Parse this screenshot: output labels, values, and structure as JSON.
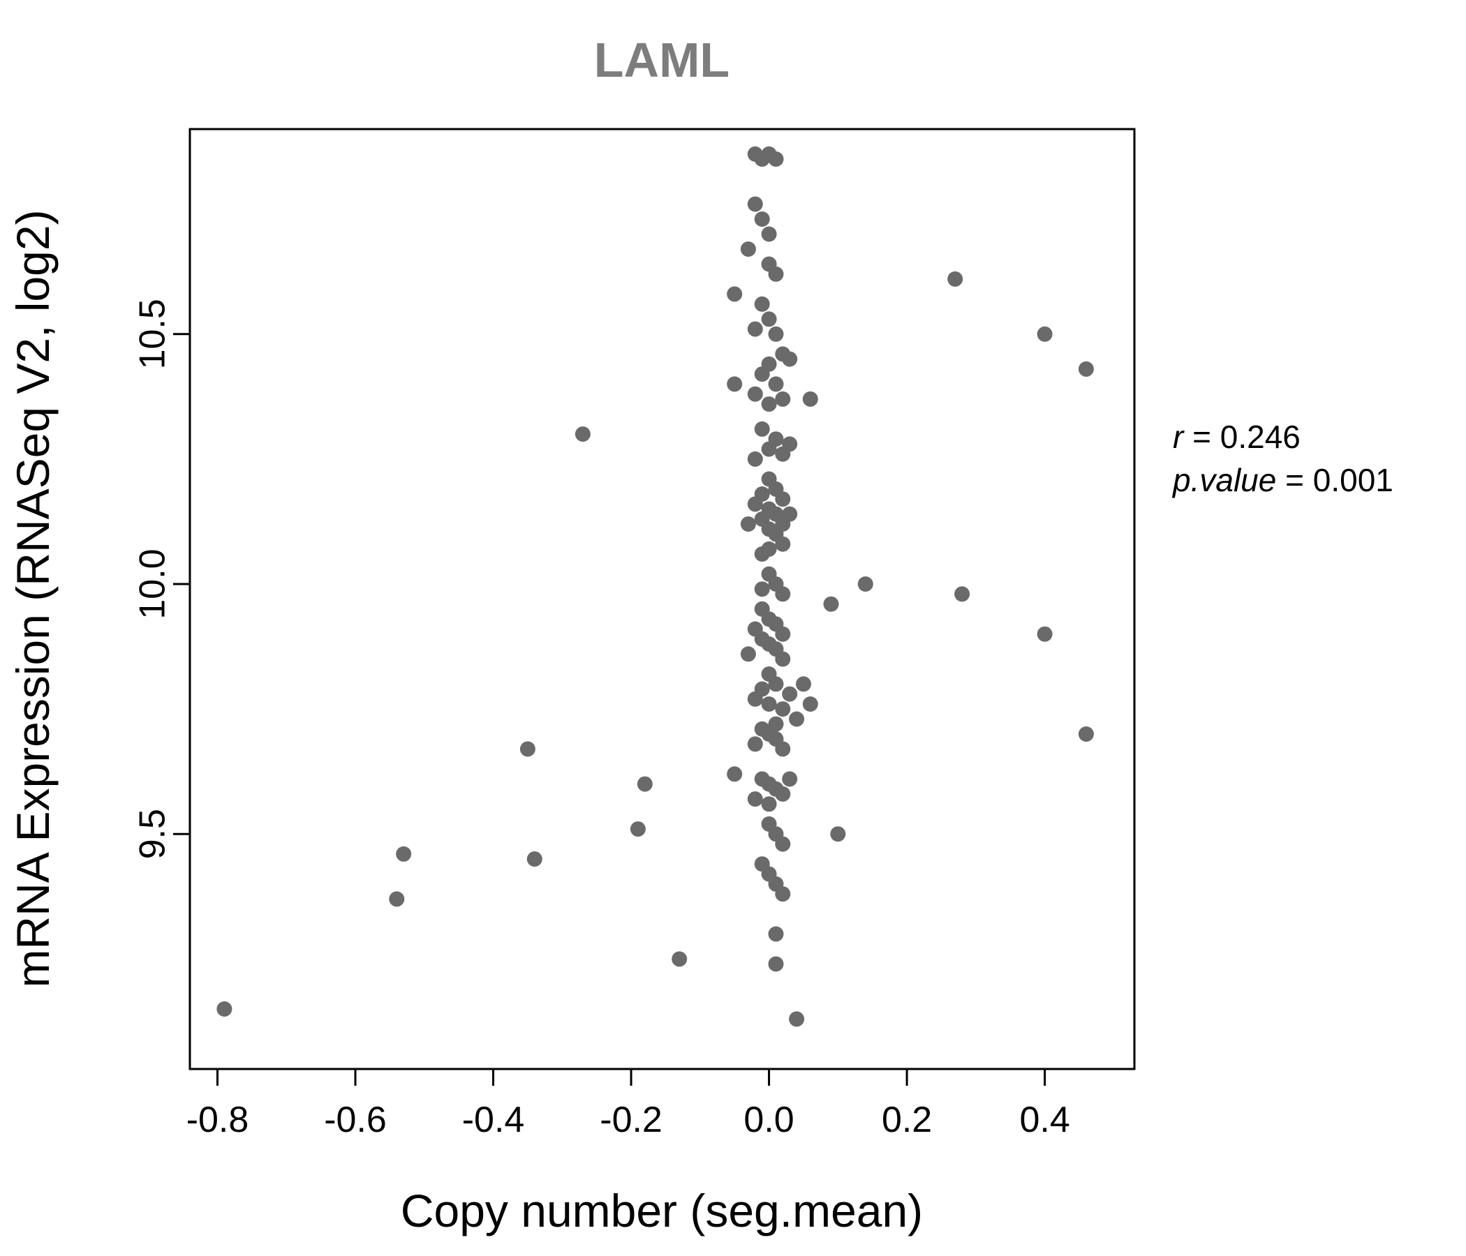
{
  "chart": {
    "title": "LAML",
    "xlabel": "Copy number (seg.mean)",
    "ylabel": "mRNA Expression (RNASeq V2, log2)"
  },
  "annotation": {
    "line1": {
      "label": "r",
      "rest": " = 0.246"
    },
    "line2": {
      "label": "p.value",
      "rest": " = 0.001"
    }
  },
  "chart_data": {
    "type": "scatter",
    "title": "LAML",
    "xlabel": "Copy number (seg.mean)",
    "ylabel": "mRNA Expression (RNASeq V2, log2)",
    "xlim": [
      -0.84,
      0.53
    ],
    "ylim": [
      9.03,
      10.91
    ],
    "x_ticks": [
      -0.8,
      -0.6,
      -0.4,
      -0.2,
      0,
      0.2,
      0.4
    ],
    "x_tick_labels": [
      "-0.8",
      "-0.6",
      "-0.4",
      "-0.2",
      "0.0",
      "0.2",
      "0.4"
    ],
    "y_ticks": [
      9.5,
      10,
      10.5
    ],
    "y_tick_labels": [
      "9.5",
      "10.0",
      "10.5"
    ],
    "grid": false,
    "legend_position": "none",
    "annotations": [
      "r = 0.246",
      "p.value = 0.001"
    ],
    "title_color": "#7d7d7d",
    "point_color": "#6a6a6a",
    "point_radius": 11,
    "points": [
      [
        -0.02,
        10.86
      ],
      [
        0,
        10.86
      ],
      [
        -0.01,
        10.85
      ],
      [
        0.01,
        10.85
      ],
      [
        -0.02,
        10.76
      ],
      [
        -0.01,
        10.73
      ],
      [
        0,
        10.7
      ],
      [
        -0.03,
        10.67
      ],
      [
        0,
        10.64
      ],
      [
        0.01,
        10.62
      ],
      [
        0.27,
        10.61
      ],
      [
        -0.05,
        10.58
      ],
      [
        -0.01,
        10.56
      ],
      [
        0,
        10.53
      ],
      [
        -0.02,
        10.51
      ],
      [
        0.01,
        10.5
      ],
      [
        0.4,
        10.5
      ],
      [
        0.02,
        10.46
      ],
      [
        0.03,
        10.45
      ],
      [
        0,
        10.44
      ],
      [
        0.46,
        10.43
      ],
      [
        -0.01,
        10.42
      ],
      [
        0.01,
        10.4
      ],
      [
        -0.05,
        10.4
      ],
      [
        -0.02,
        10.38
      ],
      [
        0.02,
        10.37
      ],
      [
        0.06,
        10.37
      ],
      [
        0,
        10.36
      ],
      [
        -0.01,
        10.31
      ],
      [
        -0.27,
        10.3
      ],
      [
        0.01,
        10.29
      ],
      [
        0.03,
        10.28
      ],
      [
        0,
        10.27
      ],
      [
        0.02,
        10.26
      ],
      [
        -0.02,
        10.25
      ],
      [
        0,
        10.21
      ],
      [
        0.01,
        10.19
      ],
      [
        -0.01,
        10.18
      ],
      [
        0.02,
        10.17
      ],
      [
        -0.02,
        10.16
      ],
      [
        0,
        10.15
      ],
      [
        0.03,
        10.14
      ],
      [
        0.01,
        10.14
      ],
      [
        -0.01,
        10.13
      ],
      [
        -0.03,
        10.12
      ],
      [
        0.02,
        10.12
      ],
      [
        0,
        10.11
      ],
      [
        0.01,
        10.1
      ],
      [
        0.02,
        10.08
      ],
      [
        0,
        10.07
      ],
      [
        -0.01,
        10.06
      ],
      [
        0,
        10.02
      ],
      [
        0.01,
        10.0
      ],
      [
        0.14,
        10.0
      ],
      [
        -0.01,
        9.99
      ],
      [
        0.02,
        9.98
      ],
      [
        0.28,
        9.98
      ],
      [
        0.09,
        9.96
      ],
      [
        -0.01,
        9.95
      ],
      [
        0,
        9.93
      ],
      [
        0.01,
        9.92
      ],
      [
        -0.02,
        9.91
      ],
      [
        0.02,
        9.9
      ],
      [
        0.4,
        9.9
      ],
      [
        -0.01,
        9.89
      ],
      [
        0,
        9.88
      ],
      [
        0.01,
        9.87
      ],
      [
        -0.03,
        9.86
      ],
      [
        0.02,
        9.85
      ],
      [
        0,
        9.82
      ],
      [
        0.05,
        9.8
      ],
      [
        0.01,
        9.8
      ],
      [
        -0.01,
        9.79
      ],
      [
        0.03,
        9.78
      ],
      [
        -0.02,
        9.77
      ],
      [
        0,
        9.76
      ],
      [
        0.06,
        9.76
      ],
      [
        0.02,
        9.75
      ],
      [
        0.04,
        9.73
      ],
      [
        0.01,
        9.72
      ],
      [
        -0.01,
        9.71
      ],
      [
        0,
        9.7
      ],
      [
        0.46,
        9.7
      ],
      [
        0.01,
        9.69
      ],
      [
        -0.02,
        9.68
      ],
      [
        0.02,
        9.67
      ],
      [
        -0.35,
        9.67
      ],
      [
        -0.05,
        9.62
      ],
      [
        -0.01,
        9.61
      ],
      [
        0.03,
        9.61
      ],
      [
        0,
        9.6
      ],
      [
        -0.18,
        9.6
      ],
      [
        0.01,
        9.59
      ],
      [
        0.02,
        9.58
      ],
      [
        -0.02,
        9.57
      ],
      [
        0,
        9.56
      ],
      [
        0,
        9.52
      ],
      [
        -0.19,
        9.51
      ],
      [
        0.01,
        9.5
      ],
      [
        0.1,
        9.5
      ],
      [
        0.02,
        9.48
      ],
      [
        -0.53,
        9.46
      ],
      [
        -0.34,
        9.45
      ],
      [
        -0.01,
        9.44
      ],
      [
        0,
        9.42
      ],
      [
        0.01,
        9.4
      ],
      [
        0.02,
        9.38
      ],
      [
        -0.54,
        9.37
      ],
      [
        0.01,
        9.3
      ],
      [
        -0.13,
        9.25
      ],
      [
        0.01,
        9.24
      ],
      [
        -0.79,
        9.15
      ],
      [
        0.04,
        9.13
      ]
    ]
  }
}
